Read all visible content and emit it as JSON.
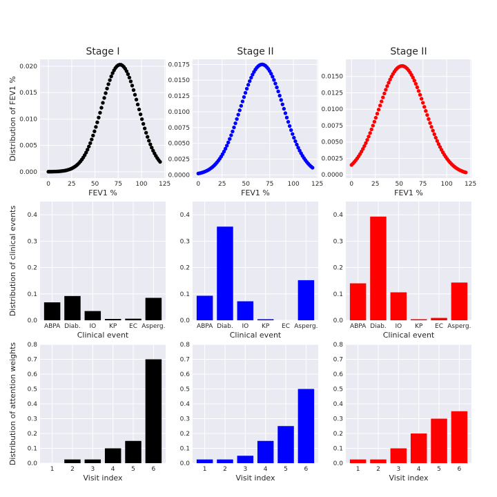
{
  "chart_data": [
    {
      "type": "scatter",
      "row": "fev1",
      "col": 0,
      "title": "Stage I",
      "xlabel": "FEV1 %",
      "ylabel": "Distribution of FEV1 %",
      "color": "#000000",
      "curve": {
        "mean": 77,
        "sd": 19.7,
        "peak": 0.0203,
        "x_min": 0,
        "x_max": 120,
        "step": 1.5
      },
      "xlim": [
        -9,
        126
      ],
      "ylim": [
        -0.0012,
        0.0213
      ],
      "xticks": [
        0,
        25,
        50,
        75,
        100,
        125
      ],
      "xtick_labels": [
        "0",
        "25",
        "50",
        "75",
        "100",
        "125"
      ],
      "yticks": [
        0,
        0.005,
        0.01,
        0.015,
        0.02
      ],
      "ytick_labels": [
        "0.000",
        "0.005",
        "0.010",
        "0.015",
        "0.020"
      ]
    },
    {
      "type": "scatter",
      "row": "fev1",
      "col": 1,
      "title": "Stage II",
      "xlabel": "FEV1 %",
      "ylabel": "",
      "color": "#0000ff",
      "curve": {
        "mean": 67,
        "sd": 22.7,
        "peak": 0.0175,
        "x_min": 0,
        "x_max": 120,
        "step": 1.5
      },
      "xlim": [
        -6,
        126
      ],
      "ylim": [
        -0.0005,
        0.0183
      ],
      "xticks": [
        0,
        25,
        50,
        75,
        100,
        125
      ],
      "xtick_labels": [
        "0",
        "25",
        "50",
        "75",
        "100",
        "125"
      ],
      "yticks": [
        0,
        0.0025,
        0.005,
        0.0075,
        0.01,
        0.0125,
        0.015,
        0.0175
      ],
      "ytick_labels": [
        "0.0000",
        "0.0025",
        "0.0050",
        "0.0075",
        "0.0100",
        "0.0125",
        "0.0150",
        "0.0175"
      ]
    },
    {
      "type": "scatter",
      "row": "fev1",
      "col": 2,
      "title": "Stage II",
      "xlabel": "FEV1 %",
      "ylabel": "",
      "color": "#ff0000",
      "curve": {
        "mean": 53,
        "sd": 24.2,
        "peak": 0.0166,
        "x_min": 0,
        "x_max": 120,
        "step": 1.5
      },
      "xlim": [
        -6,
        126
      ],
      "ylim": [
        -0.0005,
        0.0176
      ],
      "xticks": [
        0,
        25,
        50,
        75,
        100,
        125
      ],
      "xtick_labels": [
        "0",
        "25",
        "50",
        "75",
        "100",
        "125"
      ],
      "yticks": [
        0,
        0.0025,
        0.005,
        0.0075,
        0.01,
        0.0125,
        0.015
      ],
      "ytick_labels": [
        "0.0000",
        "0.0025",
        "0.0050",
        "0.0075",
        "0.0100",
        "0.0125",
        "0.0150"
      ]
    },
    {
      "type": "bar",
      "row": "events",
      "col": 0,
      "title": "",
      "xlabel": "Clinical event",
      "ylabel": "Distribution of clinical events",
      "color": "#000000",
      "categories": [
        "ABPA",
        "Diab.",
        "IO",
        "KP",
        "EC",
        "Asperg."
      ],
      "values": [
        0.068,
        0.092,
        0.035,
        0.005,
        0.006,
        0.085
      ],
      "ylim": [
        0,
        0.45
      ],
      "yticks": [
        0,
        0.1,
        0.2,
        0.3,
        0.4
      ],
      "ytick_labels": [
        "0.0",
        "0.1",
        "0.2",
        "0.3",
        "0.4"
      ]
    },
    {
      "type": "bar",
      "row": "events",
      "col": 1,
      "title": "",
      "xlabel": "Clinical event",
      "ylabel": "",
      "color": "#0000ff",
      "categories": [
        "ABPA",
        "Diab.",
        "IO",
        "KP",
        "EC",
        "Asperg."
      ],
      "values": [
        0.093,
        0.355,
        0.072,
        0.004,
        0.0,
        0.152
      ],
      "ylim": [
        0,
        0.45
      ],
      "yticks": [
        0,
        0.1,
        0.2,
        0.3,
        0.4
      ],
      "ytick_labels": [
        "0.0",
        "0.1",
        "0.2",
        "0.3",
        "0.4"
      ]
    },
    {
      "type": "bar",
      "row": "events",
      "col": 2,
      "title": "",
      "xlabel": "Clinical event",
      "ylabel": "",
      "color": "#ff0000",
      "categories": [
        "ABPA",
        "Diab.",
        "IO",
        "KP",
        "EC",
        "Asperg."
      ],
      "values": [
        0.14,
        0.393,
        0.106,
        0.004,
        0.009,
        0.143
      ],
      "ylim": [
        0,
        0.45
      ],
      "yticks": [
        0,
        0.1,
        0.2,
        0.3,
        0.4
      ],
      "ytick_labels": [
        "0.0",
        "0.1",
        "0.2",
        "0.3",
        "0.4"
      ]
    },
    {
      "type": "bar",
      "row": "attention",
      "col": 0,
      "title": "",
      "xlabel": "Visit index",
      "ylabel": "Distribution of attention weights",
      "color": "#000000",
      "categories": [
        "1",
        "2",
        "3",
        "4",
        "5",
        "6"
      ],
      "values": [
        0.0,
        0.025,
        0.025,
        0.1,
        0.15,
        0.7
      ],
      "ylim": [
        0,
        0.8
      ],
      "yticks": [
        0,
        0.1,
        0.2,
        0.3,
        0.4,
        0.5,
        0.6,
        0.7,
        0.8
      ],
      "ytick_labels": [
        "0.0",
        "0.1",
        "0.2",
        "0.3",
        "0.4",
        "0.5",
        "0.6",
        "0.7",
        "0.8"
      ]
    },
    {
      "type": "bar",
      "row": "attention",
      "col": 1,
      "title": "",
      "xlabel": "Visit index",
      "ylabel": "",
      "color": "#0000ff",
      "categories": [
        "1",
        "2",
        "3",
        "4",
        "5",
        "6"
      ],
      "values": [
        0.025,
        0.025,
        0.05,
        0.15,
        0.25,
        0.5
      ],
      "ylim": [
        0,
        0.8
      ],
      "yticks": [
        0,
        0.1,
        0.2,
        0.3,
        0.4,
        0.5,
        0.6,
        0.7,
        0.8
      ],
      "ytick_labels": [
        "0.0",
        "0.1",
        "0.2",
        "0.3",
        "0.4",
        "0.5",
        "0.6",
        "0.7",
        "0.8"
      ]
    },
    {
      "type": "bar",
      "row": "attention",
      "col": 2,
      "title": "",
      "xlabel": "Visit index",
      "ylabel": "",
      "color": "#ff0000",
      "categories": [
        "1",
        "2",
        "3",
        "4",
        "5",
        "6"
      ],
      "values": [
        0.025,
        0.025,
        0.1,
        0.2,
        0.3,
        0.35
      ],
      "ylim": [
        0,
        0.8
      ],
      "yticks": [
        0,
        0.1,
        0.2,
        0.3,
        0.4,
        0.5,
        0.6,
        0.7,
        0.8
      ],
      "ytick_labels": [
        "0.0",
        "0.1",
        "0.2",
        "0.3",
        "0.4",
        "0.5",
        "0.6",
        "0.7",
        "0.8"
      ]
    }
  ]
}
